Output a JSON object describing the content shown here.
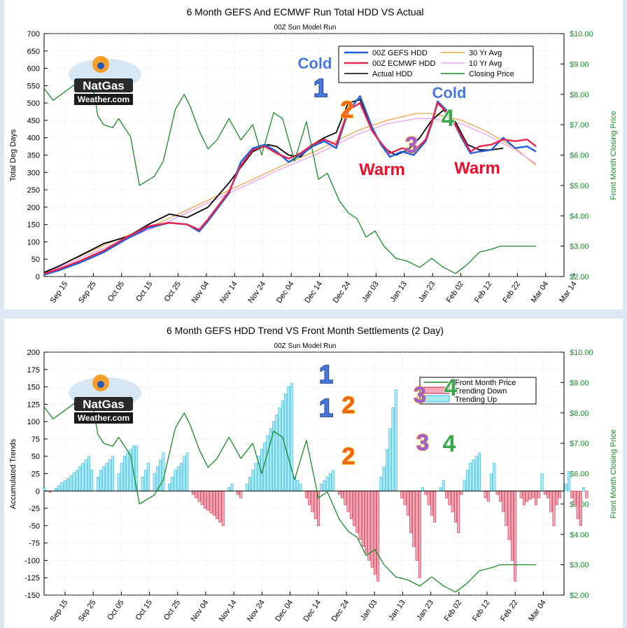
{
  "chart_data": [
    {
      "type": "line",
      "title": "6 Month GEFS And ECMWF Run Total HDD VS Actual",
      "subtitle": "00Z Sun Model Run",
      "ylabel": "Total Deg Days",
      "y2label": "Front Month Closing Price",
      "ylim": [
        0,
        700
      ],
      "yticks": [
        "0",
        "50",
        "100",
        "150",
        "200",
        "250",
        "300",
        "350",
        "400",
        "450",
        "500",
        "550",
        "600",
        "650",
        "700"
      ],
      "y2lim": [
        2,
        10
      ],
      "y2ticks": [
        "$2.00",
        "$3.00",
        "$4.00",
        "$5.00",
        "$6.00",
        "$7.00",
        "$8.00",
        "$9.00",
        "$10.00"
      ],
      "xticks": [
        "Sep 15",
        "Sep 25",
        "Oct 05",
        "Oct 15",
        "Oct 25",
        "Nov 04",
        "Nov 14",
        "Nov 24",
        "Dec 04",
        "Dec 14",
        "Dec 24",
        "Jan 03",
        "Jan 13",
        "Jan 23",
        "Feb 02",
        "Feb 12",
        "Feb 22",
        "Mar 04",
        "Mar 14"
      ],
      "legend_position": "top-right",
      "legend": [
        {
          "name": "00Z GEFS HDD",
          "color": "#1f5fe0"
        },
        {
          "name": "30 Yr Avg",
          "color": "#e8a64a"
        },
        {
          "name": "00Z ECMWF HDD",
          "color": "#e8234e"
        },
        {
          "name": "10 Yr Avg",
          "color": "#f0a0f0"
        },
        {
          "name": "Actual HDD",
          "color": "#000000"
        },
        {
          "name": "Closing Price",
          "color": "#1a8a2a"
        }
      ],
      "day_range": [
        -170,
        -5
      ],
      "series": [
        {
          "key": "avg30",
          "color": "#e8a64a",
          "x": [
            -170,
            -150,
            -130,
            -110,
            -90,
            -78,
            -65,
            -55,
            -45,
            -40,
            -30,
            -22,
            -12,
            -5
          ],
          "values": [
            10,
            90,
            160,
            240,
            320,
            365,
            420,
            450,
            470,
            470,
            450,
            420,
            370,
            320
          ]
        },
        {
          "key": "avg10",
          "color": "#f0a0f0",
          "x": [
            -170,
            -150,
            -130,
            -110,
            -90,
            -78,
            -65,
            -55,
            -45,
            -40,
            -30,
            -22,
            -12,
            -5
          ],
          "values": [
            8,
            82,
            152,
            232,
            312,
            355,
            410,
            440,
            455,
            455,
            440,
            410,
            365,
            325
          ]
        },
        {
          "key": "actual",
          "color": "#000000",
          "x": [
            -170,
            -165,
            -158,
            -150,
            -142,
            -135,
            -128,
            -122,
            -115,
            -108,
            -100,
            -95,
            -92,
            -88,
            -84,
            -80,
            -76,
            -72,
            -68,
            -64,
            -60,
            -56,
            -52,
            -48,
            -44,
            -40,
            -36,
            -32,
            -28,
            -24,
            -20,
            -16
          ],
          "values": [
            12,
            30,
            60,
            95,
            115,
            150,
            180,
            170,
            200,
            270,
            360,
            380,
            375,
            350,
            345,
            380,
            400,
            415,
            500,
            510,
            420,
            370,
            350,
            365,
            400,
            450,
            480,
            445,
            380,
            365,
            365,
            370
          ]
        },
        {
          "key": "gefs",
          "color": "#1f5fe0",
          "x": [
            -170,
            -165,
            -158,
            -150,
            -142,
            -135,
            -128,
            -122,
            -118,
            -115,
            -108,
            -104,
            -100,
            -96,
            -92,
            -88,
            -84,
            -80,
            -76,
            -72,
            -68,
            -64,
            -60,
            -57,
            -54,
            -50,
            -46,
            -42,
            -40,
            -38,
            -34,
            -30,
            -27,
            -24,
            -20,
            -16,
            -12,
            -8,
            -5
          ],
          "values": [
            5,
            18,
            40,
            70,
            110,
            140,
            155,
            150,
            130,
            160,
            240,
            330,
            370,
            380,
            360,
            330,
            350,
            375,
            390,
            370,
            475,
            520,
            430,
            380,
            345,
            360,
            350,
            390,
            440,
            505,
            470,
            400,
            355,
            360,
            365,
            400,
            370,
            375,
            360
          ]
        },
        {
          "key": "ecmwf",
          "color": "#e8234e",
          "x": [
            -170,
            -165,
            -158,
            -150,
            -142,
            -135,
            -128,
            -122,
            -118,
            -115,
            -108,
            -104,
            -100,
            -96,
            -92,
            -88,
            -84,
            -80,
            -76,
            -72,
            -68,
            -64,
            -60,
            -57,
            -54,
            -50,
            -46,
            -42,
            -40,
            -38,
            -34,
            -30,
            -27,
            -24,
            -20,
            -16,
            -12,
            -8,
            -5
          ],
          "values": [
            8,
            22,
            45,
            75,
            115,
            145,
            155,
            150,
            135,
            165,
            245,
            320,
            365,
            375,
            355,
            340,
            355,
            380,
            395,
            380,
            480,
            500,
            420,
            385,
            355,
            370,
            360,
            395,
            445,
            500,
            465,
            405,
            360,
            375,
            380,
            395,
            390,
            395,
            375
          ]
        },
        {
          "key": "price",
          "color": "#1a8a2a",
          "axis": "y2",
          "x": [
            -170,
            -167,
            -160,
            -155,
            -152,
            -150,
            -147,
            -145,
            -141,
            -138,
            -133,
            -130,
            -126,
            -123,
            -121,
            -118,
            -115,
            -112,
            -108,
            -104,
            -100,
            -97,
            -93,
            -90,
            -86,
            -82,
            -78,
            -75,
            -71,
            -68,
            -65,
            -62,
            -59,
            -56,
            -52,
            -48,
            -44,
            -40,
            -36,
            -32,
            -28,
            -24,
            -20,
            -17,
            -14,
            -11,
            -8,
            -5
          ],
          "values": [
            8.2,
            7.8,
            8.3,
            9.1,
            7.3,
            7.0,
            6.9,
            7.2,
            6.6,
            5.0,
            5.3,
            5.8,
            7.5,
            8.0,
            7.6,
            6.8,
            6.2,
            6.5,
            7.2,
            6.5,
            7.0,
            6.0,
            7.4,
            7.2,
            5.8,
            7.1,
            5.2,
            5.4,
            4.5,
            4.1,
            3.9,
            3.3,
            3.5,
            3.0,
            2.6,
            2.5,
            2.3,
            2.6,
            2.3,
            2.1,
            2.4,
            2.8,
            2.9,
            3.0,
            3.0,
            3.0,
            3.0,
            3.0
          ]
        }
      ],
      "annotations": [
        {
          "text": "Cold",
          "style": "cold"
        },
        {
          "text": "1",
          "style": "num1"
        },
        {
          "text": "2",
          "style": "num2"
        },
        {
          "text": "Warm",
          "style": "warm"
        },
        {
          "text": "3",
          "style": "num3"
        },
        {
          "text": "Cold",
          "style": "cold"
        },
        {
          "text": "4",
          "style": "num4"
        },
        {
          "text": "Warm",
          "style": "warm"
        }
      ],
      "logo": {
        "line1": "NatGas",
        "line2": "Weather.com"
      }
    },
    {
      "type": "bar",
      "title": "6 Month GEFS HDD Trend VS Front Month Settlements (2 Day)",
      "subtitle": "00Z Sun Model Run",
      "ylabel": "Accumulated Trends",
      "y2label": "Front Month Closing Price",
      "ylim": [
        -150,
        200
      ],
      "yticks": [
        "-150",
        "-125",
        "-100",
        "-75",
        "-50",
        "-25",
        "0",
        "25",
        "50",
        "75",
        "100",
        "125",
        "150",
        "175",
        "200"
      ],
      "y2lim": [
        2,
        10
      ],
      "y2ticks": [
        "$2.00",
        "$3.00",
        "$4.00",
        "$5.00",
        "$6.00",
        "$7.00",
        "$8.00",
        "$9.00",
        "$10.00"
      ],
      "xticks": [
        "Sep 15",
        "Sep 25",
        "Oct 05",
        "Oct 15",
        "Oct 25",
        "Nov 04",
        "Nov 14",
        "Nov 24",
        "Dec 04",
        "Dec 14",
        "Dec 24",
        "Jan 03",
        "Jan 13",
        "Jan 23",
        "Feb 02",
        "Feb 12",
        "Feb 22",
        "Mar 04"
      ],
      "legend_position": "top-right",
      "legend": [
        {
          "name": "Front Month Price",
          "color": "#1a8a2a"
        },
        {
          "name": "Trending Down",
          "color": "#f4a8b8"
        },
        {
          "name": "Trending Up",
          "color": "#a8eaf4"
        }
      ],
      "day_range": [
        -170,
        -5
      ],
      "bars": {
        "start": -170,
        "step": 1,
        "values": [
          5,
          0,
          -2,
          0,
          4,
          8,
          12,
          15,
          18,
          22,
          26,
          30,
          35,
          40,
          45,
          50,
          30,
          0,
          20,
          30,
          35,
          40,
          45,
          50,
          0,
          25,
          40,
          50,
          55,
          60,
          65,
          65,
          0,
          20,
          30,
          40,
          0,
          25,
          35,
          45,
          55,
          0,
          10,
          20,
          30,
          35,
          40,
          50,
          55,
          0,
          -5,
          -10,
          -15,
          -20,
          -25,
          -28,
          -32,
          -35,
          -40,
          -45,
          -50,
          0,
          5,
          10,
          0,
          -5,
          -10,
          0,
          10,
          20,
          30,
          40,
          50,
          60,
          70,
          80,
          90,
          100,
          110,
          120,
          130,
          140,
          150,
          155,
          20,
          15,
          10,
          0,
          -10,
          -20,
          -30,
          -40,
          -50,
          10,
          15,
          20,
          25,
          30,
          0,
          -5,
          -10,
          -20,
          -30,
          -40,
          -50,
          -60,
          -70,
          -80,
          -90,
          -100,
          -110,
          -120,
          -130,
          20,
          35,
          60,
          90,
          120,
          146,
          0,
          -10,
          -20,
          -35,
          -60,
          -80,
          -100,
          -125,
          5,
          -5,
          -20,
          -35,
          -45,
          0,
          5,
          15,
          -10,
          -20,
          -30,
          -45,
          -60,
          -5,
          15,
          30,
          40,
          45,
          50,
          55,
          0,
          -10,
          -15,
          25,
          40,
          -5,
          -15,
          -30,
          -50,
          -70,
          -100,
          -130,
          0,
          -10,
          -20,
          -15,
          -12,
          -10,
          -20,
          -10,
          25,
          -5,
          -10,
          -30,
          -50,
          -20,
          -10,
          0,
          10,
          28,
          -10,
          -20,
          -40,
          -50,
          5,
          -10
        ],
        "up_color": "#a8eaf4",
        "down_color": "#f4a8b8"
      },
      "series": [
        {
          "key": "price",
          "color": "#1a8a2a",
          "axis": "y2",
          "x": [
            -170,
            -167,
            -160,
            -155,
            -152,
            -150,
            -147,
            -145,
            -141,
            -138,
            -133,
            -130,
            -126,
            -123,
            -121,
            -118,
            -115,
            -112,
            -108,
            -104,
            -100,
            -97,
            -93,
            -90,
            -86,
            -82,
            -78,
            -75,
            -71,
            -68,
            -65,
            -62,
            -59,
            -56,
            -52,
            -48,
            -44,
            -40,
            -36,
            -32,
            -28,
            -24,
            -20,
            -17,
            -14,
            -11,
            -8,
            -5
          ],
          "values": [
            8.2,
            7.8,
            8.3,
            9.1,
            7.3,
            7.0,
            6.9,
            7.2,
            6.6,
            5.0,
            5.3,
            5.8,
            7.5,
            8.0,
            7.6,
            6.8,
            6.2,
            6.5,
            7.2,
            6.5,
            7.0,
            6.0,
            7.4,
            7.2,
            5.8,
            7.1,
            5.2,
            5.4,
            4.5,
            4.1,
            3.9,
            3.3,
            3.5,
            3.0,
            2.6,
            2.5,
            2.3,
            2.6,
            2.3,
            2.1,
            2.4,
            2.8,
            2.9,
            3.0,
            3.0,
            3.0,
            3.0,
            3.0
          ]
        }
      ],
      "annotations": [
        {
          "text": "1",
          "style": "num1"
        },
        {
          "text": "1",
          "style": "num1"
        },
        {
          "text": "2",
          "style": "num2"
        },
        {
          "text": "2",
          "style": "num2"
        },
        {
          "text": "3",
          "style": "num3"
        },
        {
          "text": "3",
          "style": "num3"
        },
        {
          "text": "4",
          "style": "num4"
        },
        {
          "text": "4",
          "style": "num4"
        }
      ],
      "logo": {
        "line1": "NatGas",
        "line2": "Weather.com"
      }
    }
  ]
}
